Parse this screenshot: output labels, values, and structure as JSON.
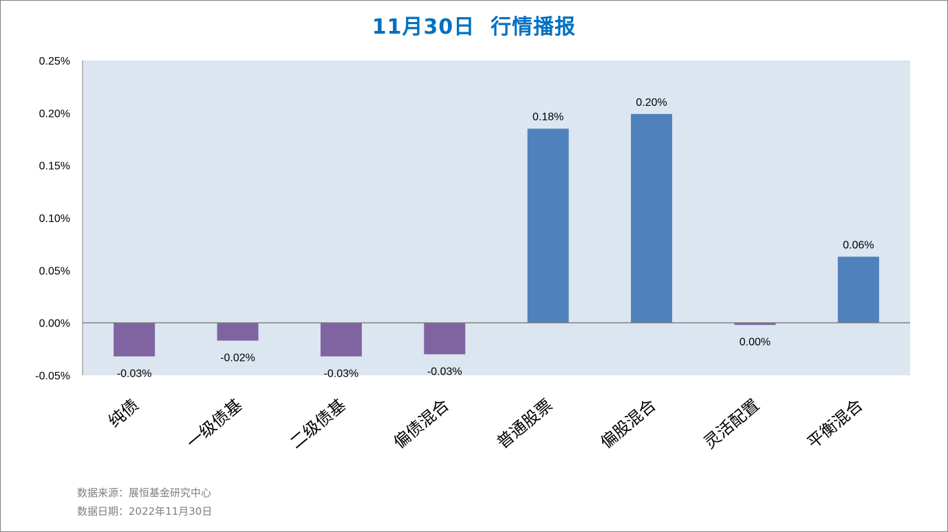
{
  "title": "11月30日  行情播报",
  "footer": {
    "source": "数据来源：展恒基金研究中心",
    "date": "数据日期：2022年11月30日"
  },
  "colors": {
    "title": "#0070c0",
    "plot_background": "#dce6f1",
    "positive_bar": "#4f81bd",
    "negative_bar": "#8064a2",
    "footer_text": "#7f7f7f"
  },
  "chart_data": {
    "type": "bar",
    "title": "11月30日  行情播报",
    "xlabel": "",
    "ylabel": "",
    "ylim": [
      -0.05,
      0.25
    ],
    "yticks": [
      "0.25%",
      "0.20%",
      "0.15%",
      "0.10%",
      "0.05%",
      "0.00%",
      "-0.05%"
    ],
    "ytick_values": [
      0.25,
      0.2,
      0.15,
      0.1,
      0.05,
      0.0,
      -0.05
    ],
    "grid": false,
    "legend": "none",
    "categories": [
      "纯债",
      "一级债基",
      "二级债基",
      "偏债混合",
      "普通股票",
      "偏股混合",
      "灵活配置",
      "平衡混合"
    ],
    "values": [
      -0.032,
      -0.017,
      -0.032,
      -0.03,
      0.185,
      0.199,
      -0.002,
      0.063
    ],
    "data_labels": [
      "-0.03%",
      "-0.02%",
      "-0.03%",
      "-0.03%",
      "0.18%",
      "0.20%",
      "0.00%",
      "0.06%"
    ]
  }
}
